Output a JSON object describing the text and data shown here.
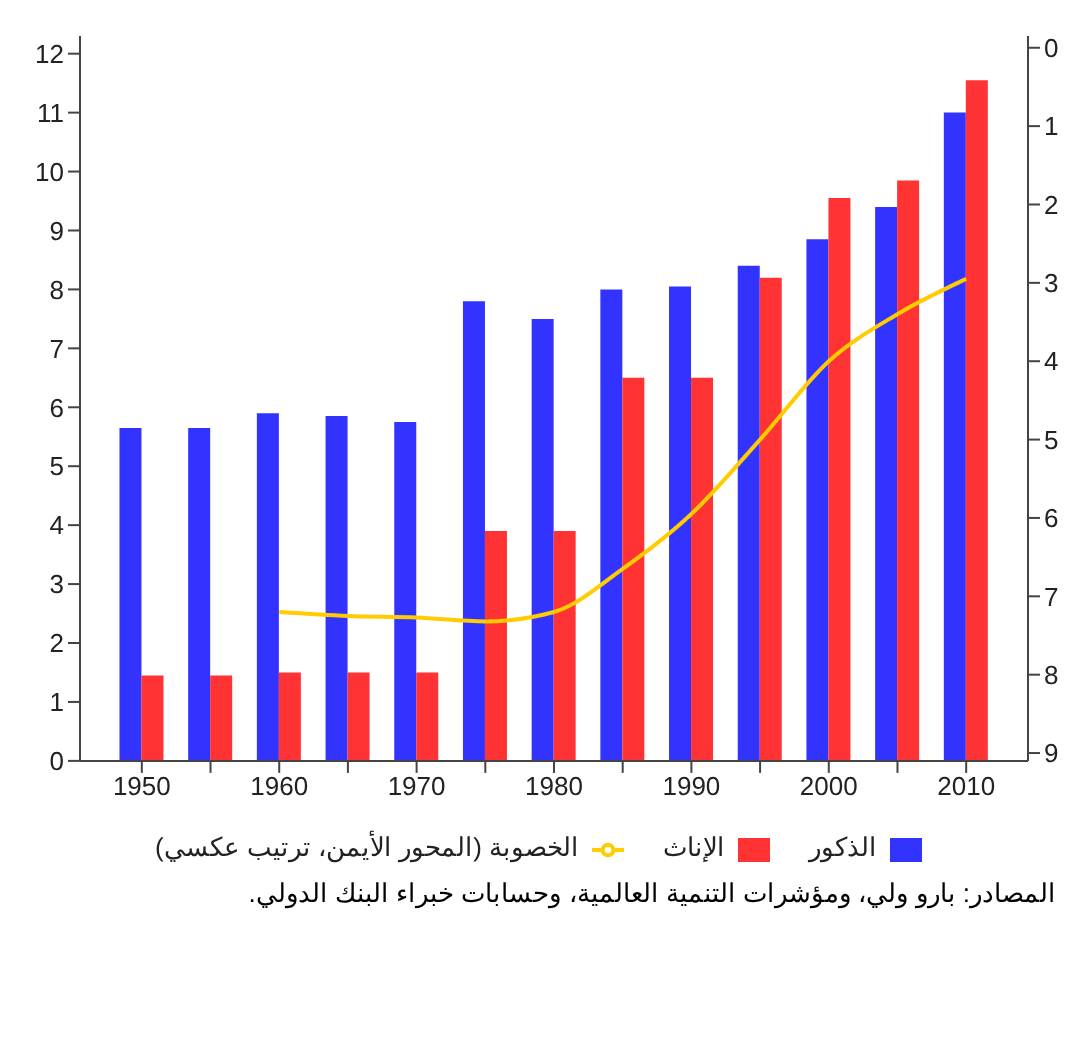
{
  "chart_data": {
    "type": "bar",
    "x": [
      1950,
      1955,
      1960,
      1965,
      1970,
      1975,
      1980,
      1985,
      1990,
      1995,
      2000,
      2005,
      2010
    ],
    "series": [
      {
        "name": "الذكور",
        "color": "#3333ff",
        "values": [
          5.65,
          5.65,
          5.9,
          5.85,
          5.75,
          7.8,
          7.5,
          8.0,
          8.05,
          8.4,
          8.85,
          9.4,
          11.0
        ]
      },
      {
        "name": "الإناث",
        "color": "#ff3333",
        "values": [
          1.45,
          1.45,
          1.5,
          1.5,
          1.5,
          3.9,
          3.9,
          6.5,
          6.5,
          8.2,
          9.55,
          9.85,
          11.55
        ]
      },
      {
        "name": "الخصوبة (المحور الأيمن، ترتيب عكسي)",
        "type": "line",
        "axis": "y2",
        "color": "#ffcc00",
        "values": [
          null,
          null,
          7.2,
          7.25,
          7.27,
          7.32,
          7.2,
          6.65,
          5.95,
          5.0,
          4.0,
          3.4,
          2.95
        ]
      }
    ],
    "xlim": [
      1945.5,
      2014.5
    ],
    "xticks": [
      1950,
      {
        "value": 1955,
        "label": null
      },
      1960,
      {
        "value": 1965,
        "label": null
      },
      1970,
      {
        "value": 1975,
        "label": null
      },
      1980,
      {
        "value": 1985,
        "label": null
      },
      1990,
      {
        "value": 1995,
        "label": null
      },
      2000,
      {
        "value": 2005,
        "label": null
      },
      2010
    ],
    "ylim": [
      0,
      12.3
    ],
    "yticks": [
      0,
      1,
      2,
      3,
      4,
      5,
      6,
      7,
      8,
      9,
      10,
      11,
      12
    ],
    "y2lim": [
      9.1,
      -0.15
    ],
    "y2ticks": [
      0,
      1,
      2,
      3,
      4,
      5,
      6,
      7,
      8,
      9
    ],
    "grid": false,
    "legend": "bottom",
    "marker": "none",
    "annotations": [
      "المصادر: بارو ولي، ومؤشرات التنمية العالمية، وحسابات خبراء البنك الدولي."
    ]
  }
}
